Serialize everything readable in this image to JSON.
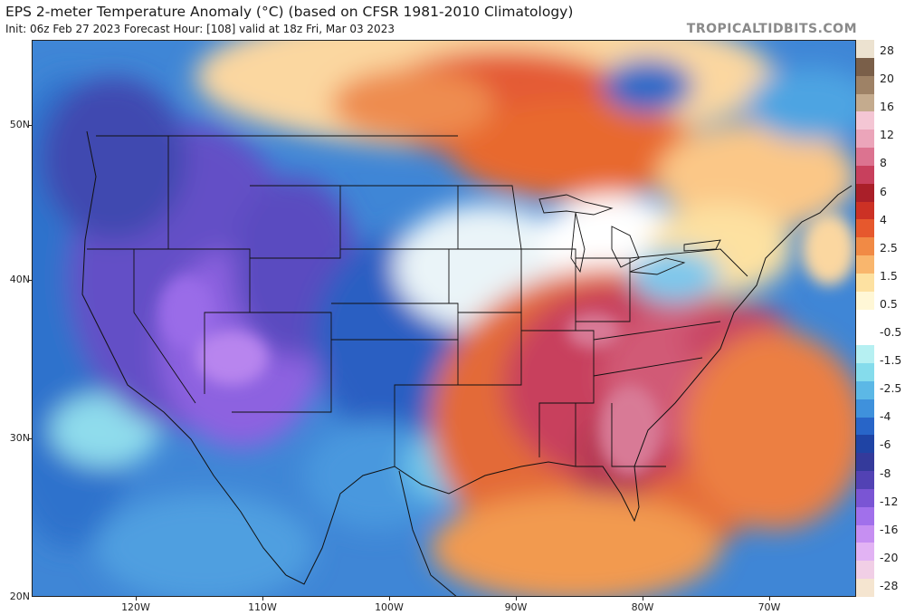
{
  "header": {
    "title": "EPS 2-meter Temperature Anomaly (°C) (based on CFSR 1981-2010 Climatology)",
    "subtitle": "Init: 06z Feb 27 2023   Forecast Hour: [108]   valid at 18z Fri, Mar 03 2023",
    "brand": "TROPICALTIDBITS.COM"
  },
  "map": {
    "lat_labels": [
      {
        "lat": 50,
        "text": "50N"
      },
      {
        "lat": 40,
        "text": "40N"
      },
      {
        "lat": 30,
        "text": "30N"
      },
      {
        "lat": 20,
        "text": "20N"
      }
    ],
    "lon_labels": [
      {
        "lon": -120,
        "text": "120W"
      },
      {
        "lon": -110,
        "text": "110W"
      },
      {
        "lon": -100,
        "text": "100W"
      },
      {
        "lon": -90,
        "text": "90W"
      },
      {
        "lon": -80,
        "text": "80W"
      },
      {
        "lon": -70,
        "text": "70W"
      }
    ],
    "lon_range": [
      -128,
      -63
    ],
    "lat_range": [
      20,
      55
    ]
  },
  "colorbar": {
    "labels": [
      "28",
      "20",
      "16",
      "12",
      "8",
      "6",
      "4",
      "2.5",
      "1.5",
      "0.5",
      "-0.5",
      "-1.5",
      "-2.5",
      "-4",
      "-6",
      "-8",
      "-12",
      "-16",
      "-20",
      "-28"
    ],
    "colors": [
      "#ece2d0",
      "#7a5f49",
      "#9e8266",
      "#c4ab8e",
      "#f4c6d4",
      "#eba5ba",
      "#dc7390",
      "#c8405d",
      "#aa1f29",
      "#cc3125",
      "#e6582d",
      "#f18a45",
      "#f9b66d",
      "#fde1a1",
      "#fff7d6",
      "#ffffff",
      "#ffffff",
      "#b6f0f2",
      "#85dcec",
      "#5cb8e6",
      "#3f91dc",
      "#2865c8",
      "#1f44a5",
      "#343a9b",
      "#5242b4",
      "#7a55d4",
      "#a170eb",
      "#c68ff2",
      "#e2b3f4",
      "#f1cfe6",
      "#f5e5d0"
    ]
  }
}
